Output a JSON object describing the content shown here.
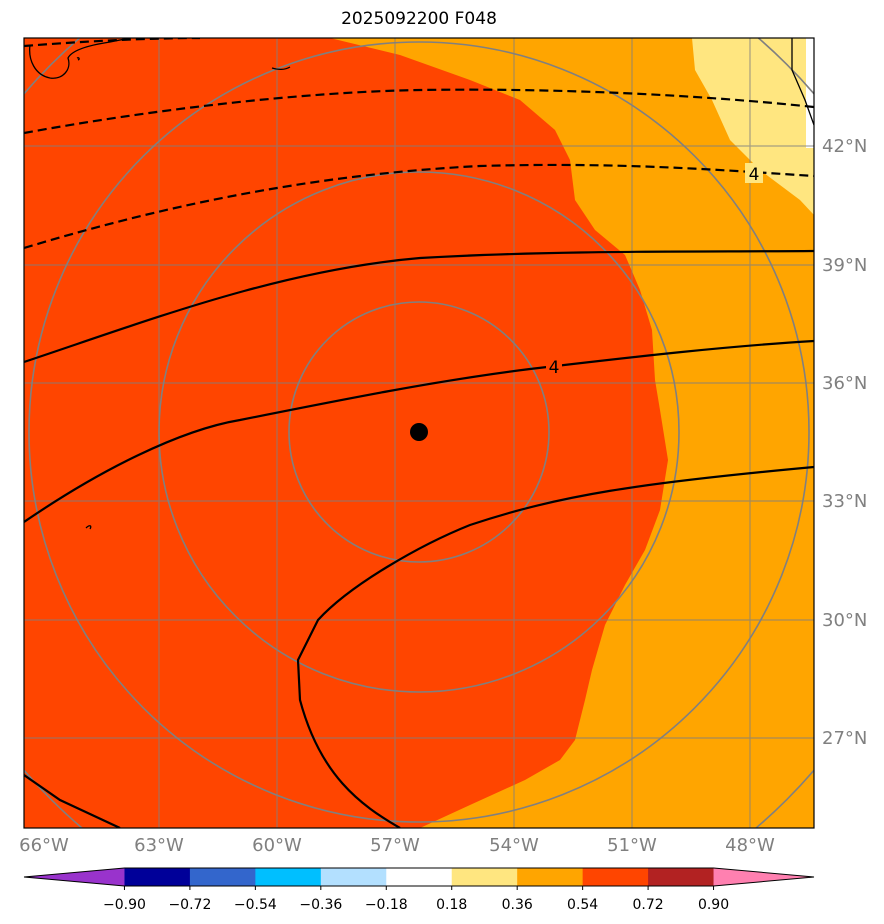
{
  "title": "2025092200 F048",
  "lon_ticks": [
    "66°W",
    "63°W",
    "60°W",
    "57°W",
    "54°W",
    "51°W",
    "48°W"
  ],
  "lat_ticks": [
    "42°N",
    "39°N",
    "36°N",
    "33°N",
    "30°N",
    "27°N"
  ],
  "contour_labels": [
    "4",
    "4"
  ],
  "colorbar": {
    "ticks": [
      "−0.90",
      "−0.72",
      "−0.54",
      "−0.36",
      "−0.18",
      "0.18",
      "0.36",
      "0.54",
      "0.72",
      "0.90"
    ],
    "colors": [
      "#9933cc",
      "#000099",
      "#3366cc",
      "#00bfff",
      "#b3e0ff",
      "#ffffff",
      "#ffe680",
      "#ffa500",
      "#ff4500",
      "#b22222",
      "#ff80b0"
    ]
  },
  "map": {
    "center_marker": "storm-center"
  }
}
